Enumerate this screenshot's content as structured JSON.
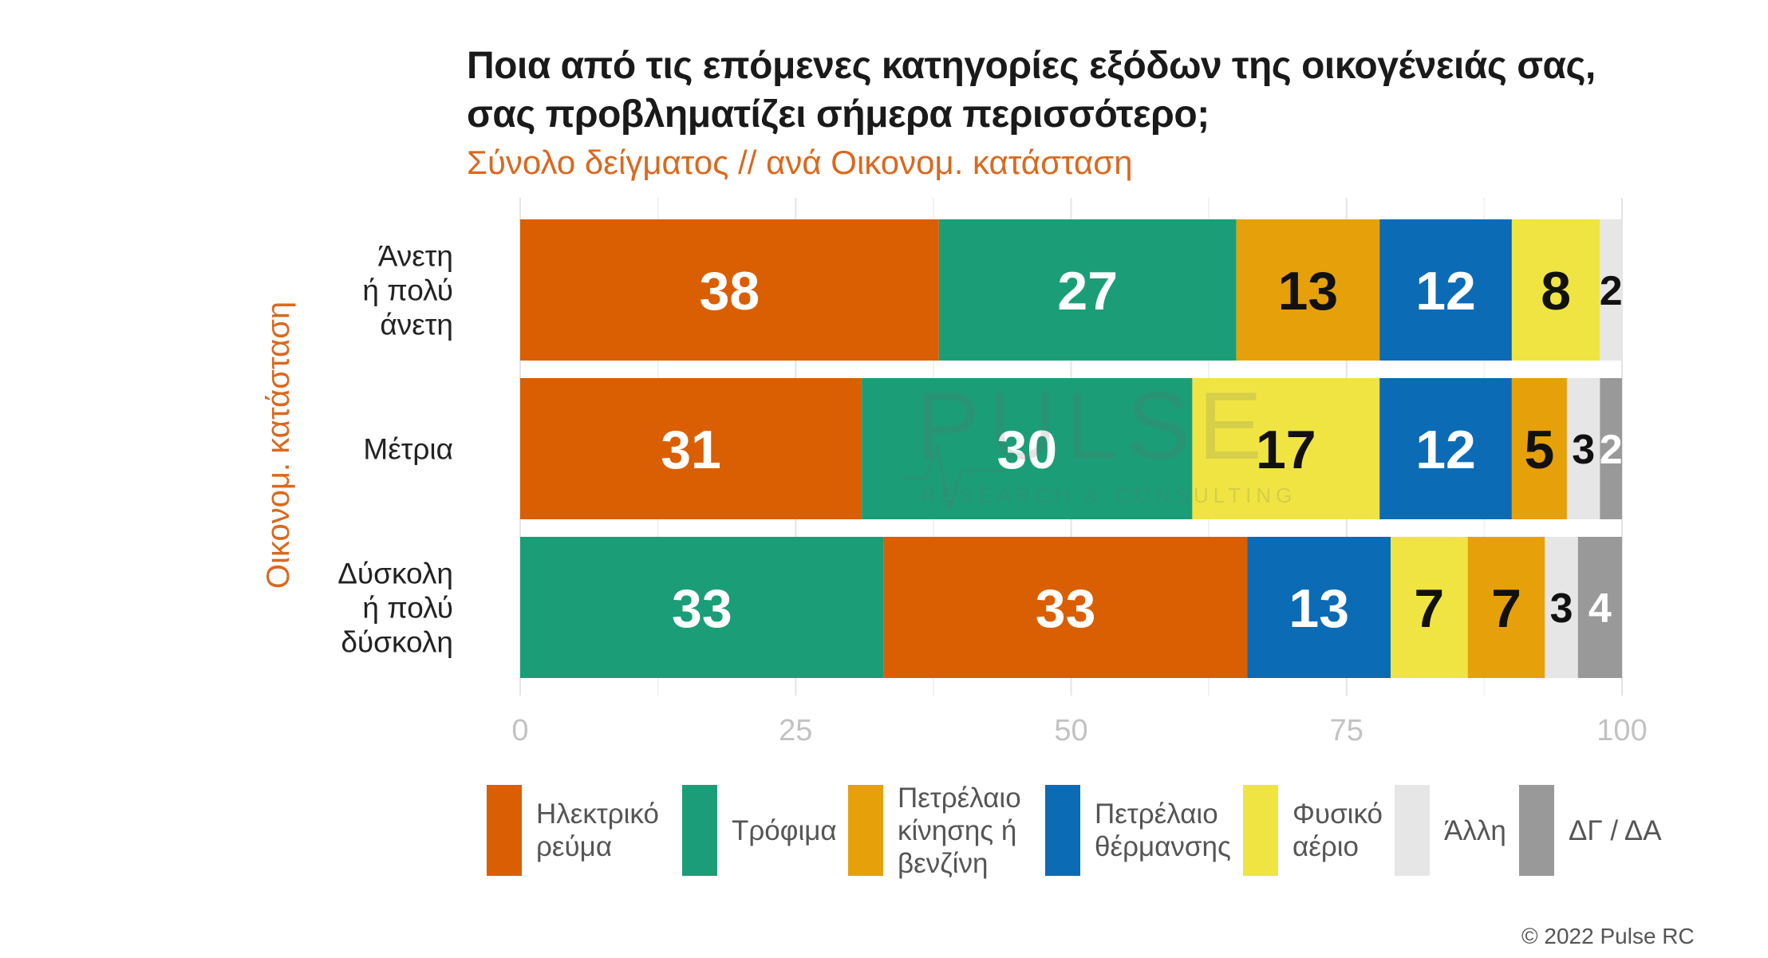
{
  "title_line1": "Ποια από τις επόμενες κατηγορίες εξόδων της οικογένειάς σας,",
  "title_line2": "σας προβληματίζει σήμερα περισσότερο;",
  "subtitle": "Σύνολο δείγματος // ανά Οικονομ. κατάσταση",
  "credit": "© 2022 Pulse RC",
  "watermark": {
    "brand": "PULSE",
    "tagline": "RESEARCH & CONSULTING"
  },
  "colors": {
    "electricity": "#d95f02",
    "food": "#1b9e77",
    "fuel": "#e6a00a",
    "heating_oil": "#0b6bb5",
    "natural_gas": "#f0e442",
    "other": "#e6e6e6",
    "dk_na": "#999999"
  },
  "chart_data": {
    "type": "bar",
    "orientation": "horizontal",
    "stacked": true,
    "ylabel": "Οικονομ. κατάσταση",
    "xlabel": "",
    "xlim": [
      0,
      100
    ],
    "xticks": [
      "0",
      "25",
      "50",
      "75",
      "100"
    ],
    "grid": true,
    "legend_position": "bottom",
    "categories": [
      "Άνετη ή πολύ άνετη",
      "Μέτρια",
      "Δύσκολη ή πολύ δύσκολη"
    ],
    "category_lines": [
      [
        "Άνετη",
        "ή πολύ",
        "άνετη"
      ],
      [
        "Μέτρια"
      ],
      [
        "Δύσκολη",
        "ή πολύ",
        "δύσκολη"
      ]
    ],
    "legend": [
      {
        "key": "electricity",
        "label": "Ηλεκτρικό\nρεύμα"
      },
      {
        "key": "food",
        "label": "Τρόφιμα"
      },
      {
        "key": "fuel",
        "label": "Πετρέλαιο\nκίνησης ή\nβενζίνη"
      },
      {
        "key": "heating_oil",
        "label": "Πετρέλαιο\nθέρμανσης"
      },
      {
        "key": "natural_gas",
        "label": "Φυσικό\nαέριο"
      },
      {
        "key": "other",
        "label": "Άλλη"
      },
      {
        "key": "dk_na",
        "label": "ΔΓ / ΔΑ"
      }
    ],
    "rows": [
      {
        "category": "Άνετη ή πολύ άνετη",
        "segments": [
          {
            "key": "electricity",
            "value": 38
          },
          {
            "key": "food",
            "value": 27
          },
          {
            "key": "fuel",
            "value": 13
          },
          {
            "key": "heating_oil",
            "value": 12
          },
          {
            "key": "natural_gas",
            "value": 8
          },
          {
            "key": "other",
            "value": 2
          }
        ]
      },
      {
        "category": "Μέτρια",
        "segments": [
          {
            "key": "electricity",
            "value": 31
          },
          {
            "key": "food",
            "value": 30
          },
          {
            "key": "natural_gas",
            "value": 17
          },
          {
            "key": "heating_oil",
            "value": 12
          },
          {
            "key": "fuel",
            "value": 5
          },
          {
            "key": "other",
            "value": 3
          },
          {
            "key": "dk_na",
            "value": 2
          }
        ]
      },
      {
        "category": "Δύσκολη ή πολύ δύσκολη",
        "segments": [
          {
            "key": "food",
            "value": 33
          },
          {
            "key": "electricity",
            "value": 33
          },
          {
            "key": "heating_oil",
            "value": 13
          },
          {
            "key": "natural_gas",
            "value": 7
          },
          {
            "key": "fuel",
            "value": 7
          },
          {
            "key": "other",
            "value": 3
          },
          {
            "key": "dk_na",
            "value": 4
          }
        ]
      }
    ]
  }
}
